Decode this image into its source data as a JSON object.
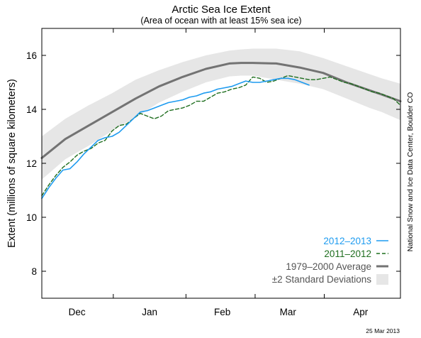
{
  "chart_data": {
    "type": "line",
    "title": "Arctic Sea Ice Extent",
    "subtitle": "(Area of ocean with at least 15% sea ice)",
    "ylabel": "Extent (millions of square kilometers)",
    "xlabel": "",
    "ylim": [
      7,
      17
    ],
    "y_ticks": [
      8,
      10,
      12,
      14,
      16
    ],
    "x_range_days": [
      0,
      153
    ],
    "x_tick_labels": [
      {
        "label": "Dec",
        "day": 15
      },
      {
        "label": "Jan",
        "day": 46
      },
      {
        "label": "Feb",
        "day": 77
      },
      {
        "label": "Mar",
        "day": 105
      },
      {
        "label": "Apr",
        "day": 136
      }
    ],
    "grid": false,
    "legend_position": "lower-right",
    "series": [
      {
        "name": "1979–2000 Average",
        "color": "#737373",
        "style": "solid-thick",
        "x": [
          0,
          10,
          20,
          30,
          40,
          50,
          60,
          70,
          80,
          85,
          90,
          100,
          110,
          120,
          130,
          140,
          145,
          153
        ],
        "y": [
          12.2,
          12.9,
          13.4,
          13.9,
          14.4,
          14.85,
          15.2,
          15.5,
          15.7,
          15.72,
          15.72,
          15.7,
          15.55,
          15.35,
          15.0,
          14.7,
          14.55,
          14.3
        ]
      },
      {
        "name": "±2 Standard Deviations",
        "color": "#e6e6e6",
        "style": "band",
        "x": [
          0,
          10,
          20,
          30,
          40,
          50,
          60,
          70,
          80,
          85,
          90,
          100,
          110,
          120,
          130,
          140,
          145,
          153
        ],
        "upper": [
          13.0,
          13.65,
          14.15,
          14.6,
          15.1,
          15.45,
          15.75,
          16.0,
          16.18,
          16.22,
          16.25,
          16.25,
          16.15,
          15.9,
          15.6,
          15.3,
          15.15,
          14.95
        ],
        "lower": [
          11.4,
          12.15,
          12.65,
          13.2,
          13.7,
          14.25,
          14.65,
          15.0,
          15.22,
          15.25,
          15.25,
          15.1,
          14.95,
          14.75,
          14.4,
          14.05,
          13.9,
          13.6
        ]
      },
      {
        "name": "2011–2012",
        "color": "#1f6e1f",
        "style": "dashed",
        "x": [
          0,
          3,
          6,
          9,
          12,
          15,
          18,
          21,
          24,
          27,
          30,
          33,
          36,
          39,
          42,
          45,
          48,
          51,
          54,
          57,
          60,
          63,
          66,
          69,
          72,
          75,
          78,
          81,
          84,
          87,
          90,
          93,
          96,
          99,
          102,
          105,
          108,
          111,
          114,
          117,
          120,
          123,
          126,
          129,
          132,
          135,
          138,
          141,
          144,
          147,
          150,
          153
        ],
        "y": [
          10.8,
          11.2,
          11.55,
          11.85,
          12.05,
          12.3,
          12.45,
          12.55,
          12.75,
          12.85,
          13.2,
          13.4,
          13.45,
          13.65,
          13.85,
          13.75,
          13.65,
          13.75,
          13.95,
          14.0,
          14.05,
          14.15,
          14.3,
          14.3,
          14.45,
          14.6,
          14.65,
          14.75,
          14.8,
          14.9,
          15.2,
          15.15,
          15.0,
          15.05,
          15.15,
          15.25,
          15.2,
          15.15,
          15.1,
          15.1,
          15.15,
          15.2,
          15.1,
          15.0,
          14.95,
          14.85,
          14.75,
          14.65,
          14.6,
          14.5,
          14.4,
          14.15
        ]
      },
      {
        "name": "2012–2013",
        "color": "#1d9bf0",
        "style": "solid",
        "x": [
          0,
          3,
          6,
          9,
          12,
          15,
          18,
          21,
          24,
          27,
          30,
          33,
          36,
          39,
          42,
          45,
          48,
          51,
          54,
          57,
          60,
          63,
          66,
          69,
          72,
          75,
          78,
          81,
          84,
          87,
          90,
          93,
          96,
          99,
          102,
          105,
          108,
          111,
          114
        ],
        "y": [
          10.7,
          11.1,
          11.45,
          11.75,
          11.8,
          12.05,
          12.35,
          12.6,
          12.85,
          12.95,
          13.0,
          13.15,
          13.4,
          13.65,
          13.9,
          13.95,
          14.05,
          14.15,
          14.25,
          14.3,
          14.35,
          14.45,
          14.5,
          14.6,
          14.65,
          14.75,
          14.8,
          14.85,
          14.95,
          15.05,
          15.0,
          15.0,
          15.05,
          15.1,
          15.15,
          15.15,
          15.1,
          15.0,
          14.9
        ]
      }
    ],
    "legend": [
      {
        "label": "2012–2013",
        "color": "#1d9bf0",
        "style": "solid"
      },
      {
        "label": "2011–2012",
        "color": "#1f6e1f",
        "style": "dashed"
      },
      {
        "label": "1979–2000 Average",
        "color": "#737373",
        "style": "solid-thick"
      },
      {
        "label": "±2 Standard Deviations",
        "color": "#e6e6e6",
        "style": "band"
      }
    ],
    "side_credit": "National Snow and Ice Data Center, Boulder CO",
    "date_stamp": "25 Mar 2013"
  }
}
